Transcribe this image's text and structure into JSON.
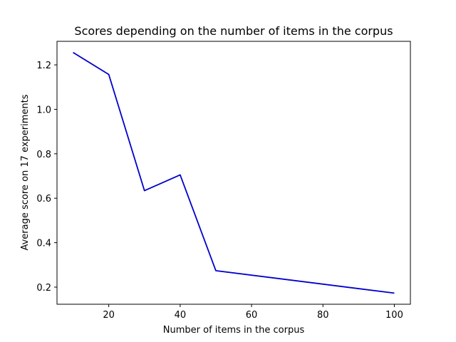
{
  "chart_data": {
    "type": "line",
    "title": "Scores depending on the number of items in the corpus",
    "xlabel": "Number of items in the corpus",
    "ylabel": "Average score on 17 experiments",
    "xlim": [
      5.5,
      104.5
    ],
    "ylim": [
      0.123,
      1.306
    ],
    "xticks": [
      20,
      40,
      60,
      80,
      100
    ],
    "xtick_labels": [
      "20",
      "40",
      "60",
      "80",
      "100"
    ],
    "yticks": [
      0.2,
      0.4,
      0.6,
      0.8,
      1.0,
      1.2
    ],
    "ytick_labels": [
      "0.2",
      "0.4",
      "0.6",
      "0.8",
      "1.0",
      "1.2"
    ],
    "grid": false,
    "series": [
      {
        "color": "#0000cc",
        "x": [
          10,
          20,
          30,
          40,
          50,
          100
        ],
        "y": [
          1.256,
          1.157,
          0.634,
          0.705,
          0.274,
          0.173
        ]
      }
    ]
  }
}
